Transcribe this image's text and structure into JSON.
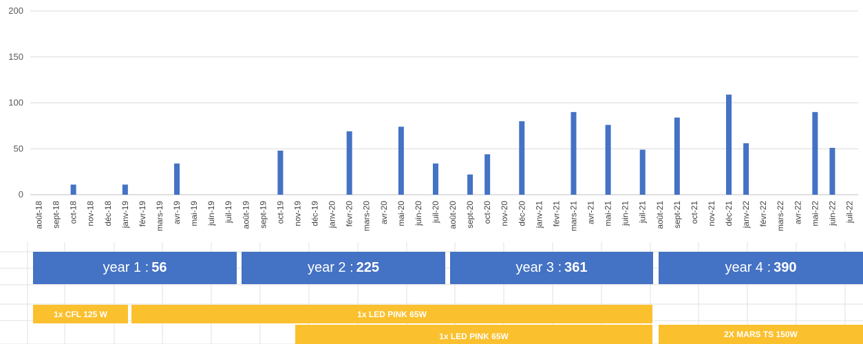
{
  "chart_data": {
    "type": "bar",
    "title": "",
    "xlabel": "",
    "ylabel": "",
    "ylim": [
      0,
      200
    ],
    "yticks": [
      0,
      50,
      100,
      150,
      200
    ],
    "grid": true,
    "categories": [
      "août-18",
      "sept-18",
      "oct-18",
      "nov-18",
      "déc-18",
      "janv-19",
      "févr-19",
      "mars-19",
      "avr-19",
      "mai-19",
      "juin-19",
      "juil-19",
      "août-19",
      "sept-19",
      "oct-19",
      "nov-19",
      "déc-19",
      "janv-20",
      "févr-20",
      "mars-20",
      "avr-20",
      "mai-20",
      "juin-20",
      "juil-20",
      "août-20",
      "sept-20",
      "oct-20",
      "nov-20",
      "déc-20",
      "janv-21",
      "févr-21",
      "mars-21",
      "avr-21",
      "mai-21",
      "juin-21",
      "juil-21",
      "août-21",
      "sept-21",
      "oct-21",
      "nov-21",
      "déc-21",
      "janv-22",
      "févr-22",
      "mars-22",
      "avr-22",
      "mai-22",
      "juin-22",
      "juil-22"
    ],
    "values": [
      0,
      0,
      11,
      0,
      0,
      11,
      0,
      0,
      34,
      0,
      0,
      0,
      0,
      0,
      48,
      0,
      0,
      0,
      69,
      0,
      0,
      74,
      0,
      34,
      0,
      22,
      44,
      0,
      80,
      0,
      0,
      90,
      0,
      76,
      0,
      49,
      0,
      84,
      0,
      0,
      109,
      56,
      0,
      0,
      0,
      90,
      51,
      0
    ],
    "bar_color": "#4472c4"
  },
  "years": [
    {
      "label": "year 1 : ",
      "total": "56"
    },
    {
      "label": "year 2 : ",
      "total": "225"
    },
    {
      "label": "year 3 : ",
      "total": "361"
    },
    {
      "label": "year 4 : ",
      "total": "390"
    }
  ],
  "lights": {
    "cfl": "1x CFL 125 W",
    "led1": "1x LED PINK 65W",
    "led2": "1x LED PINK 65W",
    "mars": "2X MARS TS 150W"
  },
  "colors": {
    "year_band": "#4472c4",
    "light_band": "#fbc02d"
  }
}
